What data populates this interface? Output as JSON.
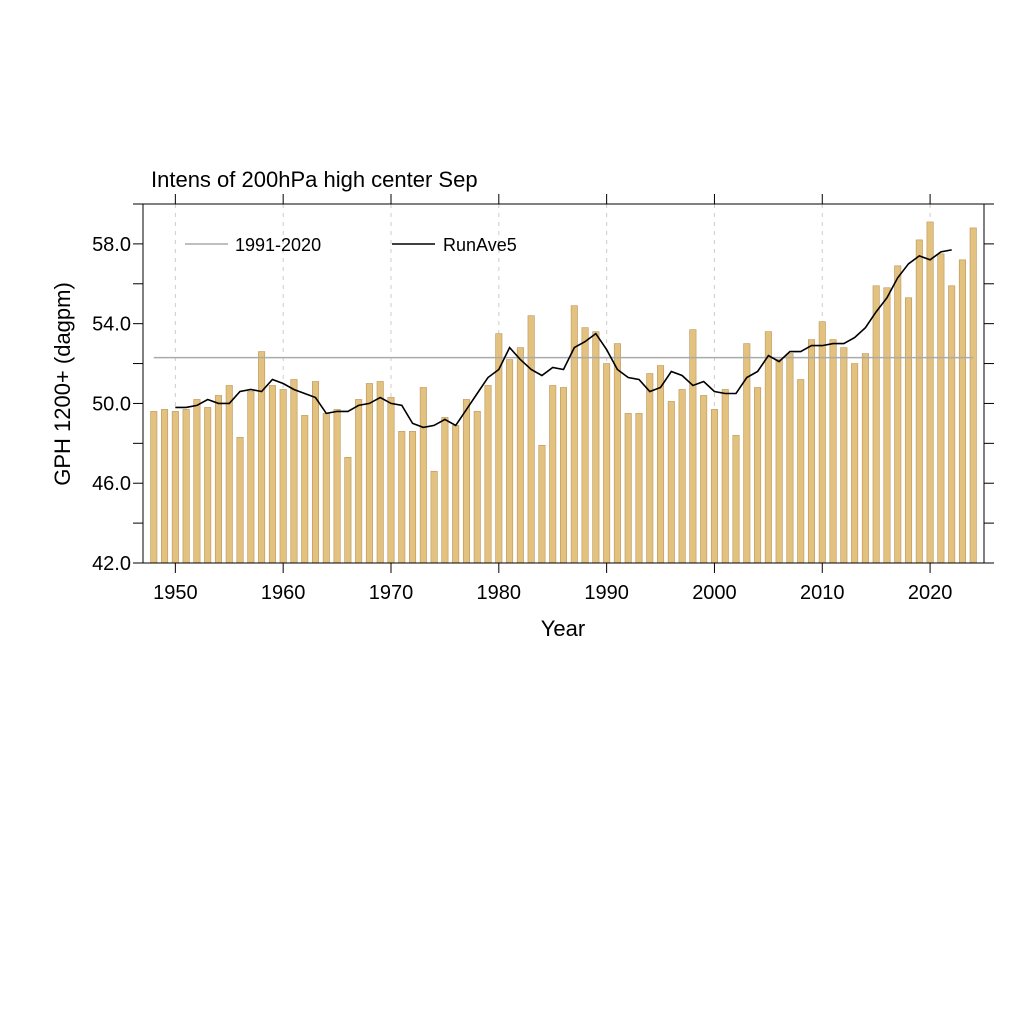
{
  "chart_data": {
    "type": "bar",
    "title": "Intens of 200hPa high center Sep",
    "xlabel": "Year",
    "ylabel": "GPH 1200+ (dagpm)",
    "xlim": [
      1947,
      2025
    ],
    "ylim": [
      42,
      60
    ],
    "xticks": [
      1950,
      1960,
      1970,
      1980,
      1990,
      2000,
      2010,
      2020
    ],
    "yticks": [
      42,
      46,
      50,
      54,
      58
    ],
    "ytick_labels": [
      "42.0",
      "46.0",
      "50.0",
      "54.0",
      "58.0"
    ],
    "ytick_minor": [
      44,
      48,
      52,
      56,
      60
    ],
    "grid": "vertical dashed at x ticks",
    "colors": {
      "bar_fill": "#e3c17e",
      "bar_edge": "#b9955a",
      "climatology": "#aaaaaa",
      "running_mean": "#000000"
    },
    "x": [
      1948,
      1949,
      1950,
      1951,
      1952,
      1953,
      1954,
      1955,
      1956,
      1957,
      1958,
      1959,
      1960,
      1961,
      1962,
      1963,
      1964,
      1965,
      1966,
      1967,
      1968,
      1969,
      1970,
      1971,
      1972,
      1973,
      1974,
      1975,
      1976,
      1977,
      1978,
      1979,
      1980,
      1981,
      1982,
      1983,
      1984,
      1985,
      1986,
      1987,
      1988,
      1989,
      1990,
      1991,
      1992,
      1993,
      1994,
      1995,
      1996,
      1997,
      1998,
      1999,
      2000,
      2001,
      2002,
      2003,
      2004,
      2005,
      2006,
      2007,
      2008,
      2009,
      2010,
      2011,
      2012,
      2013,
      2014,
      2015,
      2016,
      2017,
      2018,
      2019,
      2020,
      2021,
      2022,
      2023,
      2024
    ],
    "values": [
      49.6,
      49.7,
      49.6,
      49.7,
      50.2,
      49.8,
      50.4,
      50.9,
      48.3,
      50.6,
      52.6,
      50.9,
      50.7,
      51.2,
      49.4,
      51.1,
      49.5,
      49.7,
      47.3,
      50.2,
      51.0,
      51.1,
      50.3,
      48.6,
      48.6,
      50.8,
      46.6,
      49.3,
      48.9,
      50.2,
      49.6,
      50.9,
      53.5,
      52.2,
      52.8,
      54.4,
      47.9,
      50.9,
      50.8,
      54.9,
      53.8,
      53.6,
      52.0,
      53.0,
      49.5,
      49.5,
      51.5,
      51.9,
      50.1,
      50.7,
      53.7,
      50.4,
      49.7,
      50.7,
      48.4,
      53.0,
      50.8,
      53.6,
      52.2,
      52.5,
      51.2,
      53.2,
      54.1,
      53.2,
      52.8,
      52.0,
      52.5,
      55.9,
      55.8,
      56.9,
      55.3,
      58.2,
      59.1,
      57.5,
      55.9,
      57.2,
      58.8
    ],
    "series": [
      {
        "name": "1991-2020",
        "type": "line",
        "x": [
          1948,
          2024
        ],
        "values": [
          52.3,
          52.3
        ]
      },
      {
        "name": "RunAve5",
        "type": "line",
        "x": [
          1950,
          1951,
          1952,
          1953,
          1954,
          1955,
          1956,
          1957,
          1958,
          1959,
          1960,
          1961,
          1962,
          1963,
          1964,
          1965,
          1966,
          1967,
          1968,
          1969,
          1970,
          1971,
          1972,
          1973,
          1974,
          1975,
          1976,
          1977,
          1978,
          1979,
          1980,
          1981,
          1982,
          1983,
          1984,
          1985,
          1986,
          1987,
          1988,
          1989,
          1990,
          1991,
          1992,
          1993,
          1994,
          1995,
          1996,
          1997,
          1998,
          1999,
          2000,
          2001,
          2002,
          2003,
          2004,
          2005,
          2006,
          2007,
          2008,
          2009,
          2010,
          2011,
          2012,
          2013,
          2014,
          2015,
          2016,
          2017,
          2018,
          2019,
          2020,
          2021,
          2022
        ],
        "values": [
          49.8,
          49.8,
          49.9,
          50.2,
          50.0,
          50.0,
          50.6,
          50.7,
          50.6,
          51.2,
          51.0,
          50.7,
          50.5,
          50.3,
          49.5,
          49.6,
          49.6,
          49.9,
          50.0,
          50.3,
          50.0,
          49.9,
          49.0,
          48.8,
          48.9,
          49.2,
          48.9,
          49.7,
          50.5,
          51.3,
          51.7,
          52.8,
          52.2,
          51.7,
          51.4,
          51.8,
          51.7,
          52.8,
          53.1,
          53.5,
          52.7,
          51.7,
          51.3,
          51.2,
          50.6,
          50.8,
          51.6,
          51.4,
          50.9,
          51.1,
          50.6,
          50.5,
          50.5,
          51.3,
          51.6,
          52.4,
          52.1,
          52.6,
          52.6,
          52.9,
          52.9,
          53.0,
          53.0,
          53.3,
          53.8,
          54.6,
          55.3,
          56.3,
          57.0,
          57.4,
          57.2,
          57.6,
          57.7
        ]
      }
    ],
    "legend": [
      "1991-2020",
      "RunAve5"
    ],
    "legend_placement": "top-left"
  }
}
